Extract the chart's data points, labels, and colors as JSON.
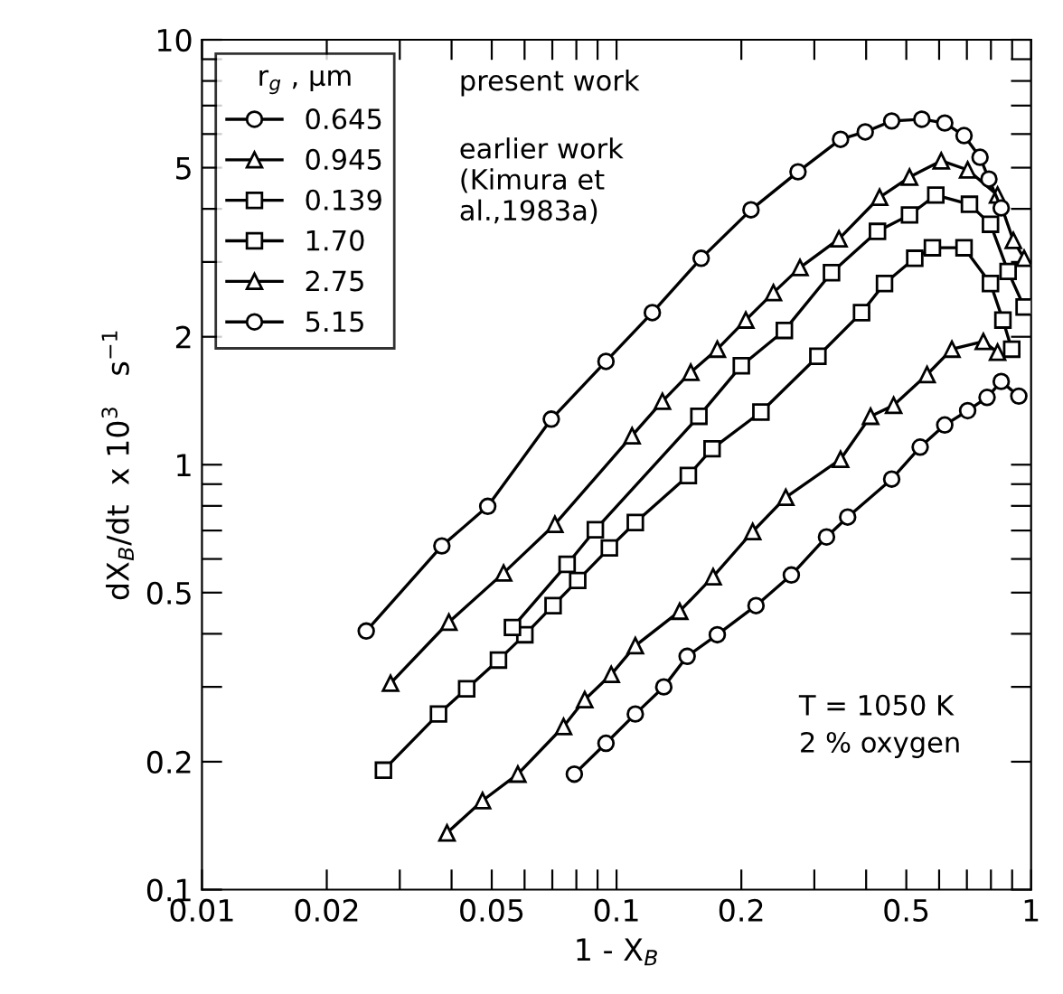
{
  "chart_data": {
    "type": "line",
    "xlabel": "1 - X$_{B}$",
    "ylabel": "dX$_{B}$/dt  x 10$^{3}$   s$^{−1}$",
    "legend_title": "r$_{g}$ , μm",
    "legend": "top left",
    "log": "xy",
    "grid": false,
    "xlim": [
      0.01,
      1
    ],
    "ylim": [
      0.1,
      10
    ],
    "xticks": [
      {
        "value": 0.01,
        "label": "0.01"
      },
      {
        "value": 0.02,
        "label": "0.02"
      },
      {
        "value": 0.03,
        "label": null
      },
      {
        "value": 0.04,
        "label": null
      },
      {
        "value": 0.05,
        "label": "0.05"
      },
      {
        "value": 0.06,
        "label": null
      },
      {
        "value": 0.07,
        "label": null
      },
      {
        "value": 0.08,
        "label": null
      },
      {
        "value": 0.09,
        "label": null
      },
      {
        "value": 0.1,
        "label": "0.1"
      },
      {
        "value": 0.2,
        "label": "0.2"
      },
      {
        "value": 0.3,
        "label": null
      },
      {
        "value": 0.4,
        "label": null
      },
      {
        "value": 0.5,
        "label": "0.5"
      },
      {
        "value": 0.6,
        "label": null
      },
      {
        "value": 0.7,
        "label": null
      },
      {
        "value": 0.8,
        "label": null
      },
      {
        "value": 0.9,
        "label": null
      },
      {
        "value": 1,
        "label": "1"
      }
    ],
    "yticks": [
      {
        "value": 0.1,
        "label": "0.1"
      },
      {
        "value": 0.2,
        "label": "0.2"
      },
      {
        "value": 0.3,
        "label": null
      },
      {
        "value": 0.4,
        "label": null
      },
      {
        "value": 0.5,
        "label": "0.5"
      },
      {
        "value": 0.6,
        "label": null
      },
      {
        "value": 0.7,
        "label": null
      },
      {
        "value": 0.8,
        "label": null
      },
      {
        "value": 0.9,
        "label": null
      },
      {
        "value": 1,
        "label": "1"
      },
      {
        "value": 2,
        "label": "2"
      },
      {
        "value": 3,
        "label": null
      },
      {
        "value": 4,
        "label": null
      },
      {
        "value": 5,
        "label": "5"
      },
      {
        "value": 6,
        "label": null
      },
      {
        "value": 7,
        "label": null
      },
      {
        "value": 8,
        "label": null
      },
      {
        "value": 9,
        "label": null
      },
      {
        "value": 10,
        "label": "10"
      }
    ],
    "annotations": [
      "present work",
      "earlier work\n(Kimura et\nal.,1983a)",
      "T = 1050 K\n2 % oxygen"
    ],
    "series": [
      {
        "name": "0.645",
        "color": "#000000",
        "marker": "circle",
        "x": [
          0.0249,
          0.0379,
          0.0489,
          0.0696,
          0.0943,
          0.122,
          0.16,
          0.211,
          0.274,
          0.347,
          0.398,
          0.461,
          0.545,
          0.619,
          0.689,
          0.753,
          0.791,
          0.847
        ],
        "values": [
          0.406,
          0.644,
          0.798,
          1.28,
          1.75,
          2.28,
          3.06,
          3.98,
          4.89,
          5.83,
          6.07,
          6.44,
          6.5,
          6.37,
          5.95,
          5.29,
          4.7,
          4.02
        ]
      },
      {
        "name": "0.945",
        "color": "#000000",
        "marker": "triangle",
        "x": [
          0.0285,
          0.0394,
          0.0534,
          0.071,
          0.109,
          0.129,
          0.151,
          0.175,
          0.205,
          0.239,
          0.277,
          0.344,
          0.431,
          0.509,
          0.607,
          0.703,
          0.83,
          0.906,
          0.962
        ],
        "values": [
          0.306,
          0.426,
          0.556,
          0.724,
          1.17,
          1.41,
          1.65,
          1.87,
          2.19,
          2.54,
          2.91,
          3.4,
          4.26,
          4.75,
          5.19,
          4.94,
          4.31,
          3.37,
          3.06
        ]
      },
      {
        "name": "0.139",
        "color": "#000000",
        "marker": "square",
        "x": [
          0.0561,
          0.076,
          0.0889,
          0.158,
          0.2,
          0.254,
          0.33,
          0.426,
          0.509,
          0.589,
          0.71,
          0.798,
          0.88,
          0.962
        ],
        "values": [
          0.414,
          0.583,
          0.703,
          1.3,
          1.71,
          2.07,
          2.83,
          3.54,
          3.87,
          4.31,
          4.1,
          3.68,
          2.85,
          2.35
        ]
      },
      {
        "name": "1.70",
        "color": "#000000",
        "marker": "square",
        "x": [
          0.0274,
          0.0372,
          0.0435,
          0.0519,
          0.0601,
          0.0703,
          0.0806,
          0.0961,
          0.111,
          0.149,
          0.17,
          0.223,
          0.306,
          0.39,
          0.443,
          0.524,
          0.578,
          0.689,
          0.798,
          0.855,
          0.898
        ],
        "values": [
          0.191,
          0.259,
          0.297,
          0.347,
          0.398,
          0.466,
          0.534,
          0.637,
          0.731,
          0.943,
          1.09,
          1.33,
          1.8,
          2.28,
          2.67,
          3.06,
          3.24,
          3.24,
          2.67,
          2.19,
          1.87
        ]
      },
      {
        "name": "2.75",
        "color": "#000000",
        "marker": "triangle",
        "x": [
          0.039,
          0.0475,
          0.0578,
          0.0745,
          0.0838,
          0.0971,
          0.111,
          0.142,
          0.171,
          0.213,
          0.256,
          0.347,
          0.41,
          0.466,
          0.561,
          0.644,
          0.767,
          0.83
        ],
        "values": [
          0.136,
          0.162,
          0.187,
          0.242,
          0.28,
          0.321,
          0.375,
          0.452,
          0.545,
          0.696,
          0.838,
          1.03,
          1.3,
          1.38,
          1.63,
          1.87,
          1.95,
          1.84
        ]
      },
      {
        "name": "5.15",
        "color": "#000000",
        "marker": "circle",
        "x": [
          0.0791,
          0.0943,
          0.111,
          0.13,
          0.148,
          0.175,
          0.217,
          0.264,
          0.321,
          0.361,
          0.461,
          0.54,
          0.619,
          0.703,
          0.783,
          0.847,
          0.934
        ],
        "values": [
          0.187,
          0.221,
          0.259,
          0.3,
          0.354,
          0.398,
          0.466,
          0.55,
          0.676,
          0.753,
          0.925,
          1.1,
          1.24,
          1.34,
          1.44,
          1.57,
          1.45
        ]
      }
    ]
  }
}
